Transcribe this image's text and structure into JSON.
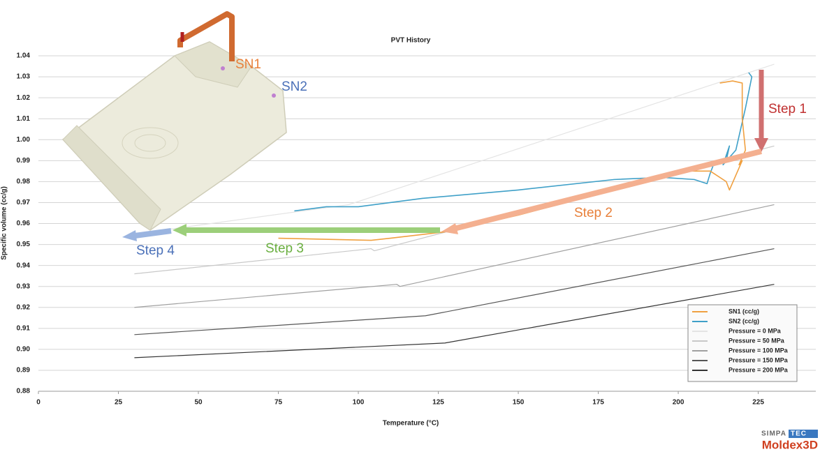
{
  "chart_data": {
    "type": "line",
    "title": "PVT History",
    "x_label": "Temperature (°C)",
    "y_label": "Specific volume (cc/g)",
    "xlim": [
      0,
      243
    ],
    "xticks": [
      0,
      25,
      50,
      75,
      100,
      125,
      150,
      175,
      200,
      225
    ],
    "ylim": [
      0.88,
      1.04
    ],
    "yticks": [
      0.88,
      0.89,
      {
        "value": 0.9,
        "label": "0.90"
      },
      0.91,
      0.92,
      0.93,
      0.94,
      0.95,
      0.96,
      0.97,
      0.98,
      0.99,
      {
        "value": 1.0,
        "label": "1.00"
      },
      1.01,
      1.02,
      1.03,
      1.04
    ],
    "grid": true,
    "legend": "lower right",
    "series": [
      {
        "name": "SN1 (cc/g)",
        "color": "#f0a040",
        "width": 1.6,
        "x": [
          213,
          217,
          220,
          220,
          221,
          219,
          220,
          216,
          215,
          210,
          200,
          180,
          150,
          127,
          110,
          104,
          75
        ],
        "values": [
          1.027,
          1.028,
          1.027,
          1.01,
          0.995,
          0.988,
          0.99,
          0.976,
          0.98,
          0.985,
          0.985,
          0.976,
          0.964,
          0.956,
          0.953,
          0.952,
          0.953
        ]
      },
      {
        "name": "SN2 (cc/g)",
        "color": "#3fa0c8",
        "width": 1.6,
        "x": [
          222,
          223,
          221,
          218,
          214,
          216,
          215,
          211,
          210,
          209,
          205,
          195,
          180,
          150,
          120,
          100,
          90,
          80
        ],
        "values": [
          1.032,
          1.03,
          1.015,
          0.995,
          0.988,
          0.997,
          0.99,
          0.988,
          0.984,
          0.979,
          0.981,
          0.982,
          0.981,
          0.976,
          0.972,
          0.968,
          0.968,
          0.966
        ]
      },
      {
        "name": "Pressure = 0 MPa",
        "color": "#e4e4e4",
        "width": 1.2,
        "x": [
          30,
          97,
          230
        ],
        "values": [
          0.955,
          0.969,
          1.036
        ]
      },
      {
        "name": "Pressure = 50 MPa",
        "color": "#c8c8c8",
        "width": 1.2,
        "x": [
          30,
          104,
          105,
          230
        ],
        "values": [
          0.936,
          0.948,
          0.947,
          0.997
        ]
      },
      {
        "name": "Pressure = 100 MPa",
        "color": "#a0a0a0",
        "width": 1.2,
        "x": [
          30,
          112,
          113,
          230
        ],
        "values": [
          0.92,
          0.931,
          0.93,
          0.969
        ]
      },
      {
        "name": "Pressure = 150 MPa",
        "color": "#555555",
        "width": 1.2,
        "x": [
          30,
          121,
          230
        ],
        "values": [
          0.907,
          0.916,
          0.948
        ]
      },
      {
        "name": "Pressure = 200 MPa",
        "color": "#333333",
        "width": 1.2,
        "x": [
          30,
          127,
          230
        ],
        "values": [
          0.896,
          0.903,
          0.931
        ]
      }
    ],
    "annotations": {
      "step1": "Step 1",
      "step2": "Step 2",
      "step3": "Step 3",
      "step4": "Step 4",
      "sn1": "SN1",
      "sn2": "SN2"
    }
  },
  "branding": {
    "simpa": "SIMPA",
    "tec": "TEC",
    "moldex": "Moldex3D"
  }
}
